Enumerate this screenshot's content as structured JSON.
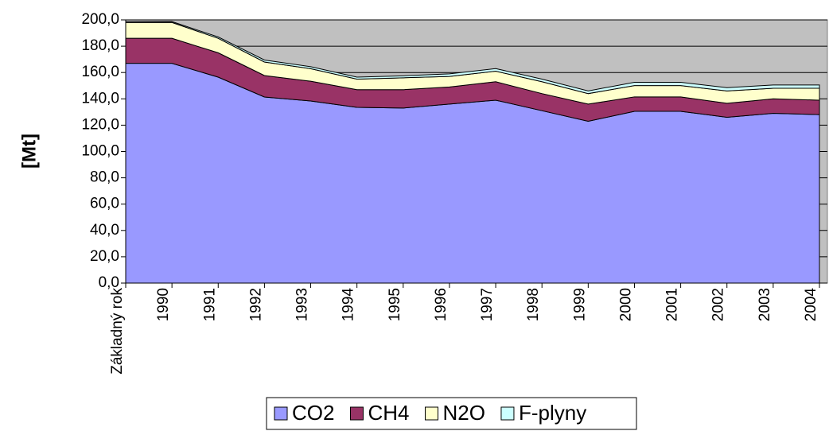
{
  "chart_data": {
    "type": "stacked_area",
    "y_label": "[Mt]",
    "categories": [
      "Základný rok",
      "1990",
      "1991",
      "1992",
      "1993",
      "1994",
      "1995",
      "1996",
      "1997",
      "1998",
      "1999",
      "2000",
      "2001",
      "2002",
      "2003",
      "2004"
    ],
    "series": [
      {
        "name": "CO2",
        "color": "#9999ff",
        "values": [
          167,
          167,
          156.5,
          141.4,
          138.4,
          133.5,
          133,
          136,
          139,
          131,
          123,
          130.5,
          130.5,
          126,
          129,
          128
        ]
      },
      {
        "name": "CH4",
        "color": "#993366",
        "values": [
          19,
          19,
          18.5,
          16.3,
          15,
          13.5,
          14,
          13,
          14,
          13,
          13,
          11,
          11,
          10.6,
          11,
          11
        ]
      },
      {
        "name": "N2O",
        "color": "#ffffcc",
        "values": [
          12,
          12,
          11,
          10.3,
          9.5,
          8,
          9,
          8,
          8,
          9,
          8,
          8.6,
          8.6,
          9.4,
          8,
          9
        ]
      },
      {
        "name": "F-plyny",
        "color": "#ccffff",
        "values": [
          0.5,
          0.7,
          1,
          1.5,
          1.5,
          1.5,
          1.5,
          2,
          2,
          2,
          2,
          2.5,
          2.5,
          2.5,
          2.5,
          2.5
        ]
      }
    ],
    "ylim": [
      0,
      200
    ],
    "yticks": [
      {
        "value": 0,
        "label": "0,0"
      },
      {
        "value": 20,
        "label": "20,0"
      },
      {
        "value": 40,
        "label": "40,0"
      },
      {
        "value": 60,
        "label": "60,0"
      },
      {
        "value": 80,
        "label": "80,0"
      },
      {
        "value": 100,
        "label": "100,0"
      },
      {
        "value": 120,
        "label": "120,0"
      },
      {
        "value": 140,
        "label": "140,0"
      },
      {
        "value": 160,
        "label": "160,0"
      },
      {
        "value": 180,
        "label": "180,0"
      },
      {
        "value": 200,
        "label": "200,0"
      }
    ],
    "grid": true,
    "legend": "bottom",
    "background": "#c0c0c0"
  }
}
